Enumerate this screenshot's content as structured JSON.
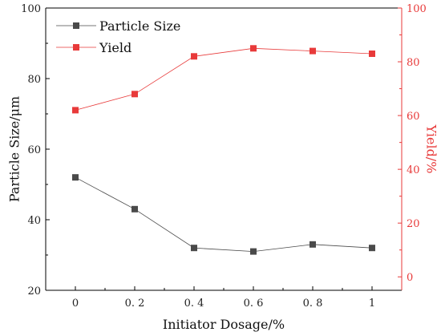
{
  "chart_data": {
    "type": "line",
    "xlabel": "Initiator Dosage/%",
    "ylabel": "Particle Size/μm",
    "y2label": "Yield/%",
    "x_tick_labels": [
      "0",
      "0. 2",
      "0. 4",
      "0. 6",
      "0. 8",
      "1"
    ],
    "x": [
      0,
      0.2,
      0.4,
      0.6,
      0.8,
      1.0
    ],
    "xlim": [
      -0.1,
      1.1
    ],
    "ylim": [
      20,
      100
    ],
    "y_ticks": [
      20,
      40,
      60,
      80,
      100
    ],
    "y2lim": [
      -5,
      100
    ],
    "y2_ticks": [
      0,
      20,
      40,
      60,
      80,
      100
    ],
    "grid": false,
    "legend_position": "top-left",
    "series": [
      {
        "name": "Particle Size",
        "axis": "left",
        "color": "#4a4a4a",
        "marker": "square",
        "values": [
          52,
          43,
          32,
          31,
          33,
          32
        ]
      },
      {
        "name": "Yield",
        "axis": "right",
        "color": "#e83a3a",
        "marker": "square",
        "values": [
          62,
          68,
          82,
          85,
          84,
          83
        ]
      }
    ],
    "axis_colors": {
      "left": "#000000",
      "right": "#e83a3a"
    }
  }
}
